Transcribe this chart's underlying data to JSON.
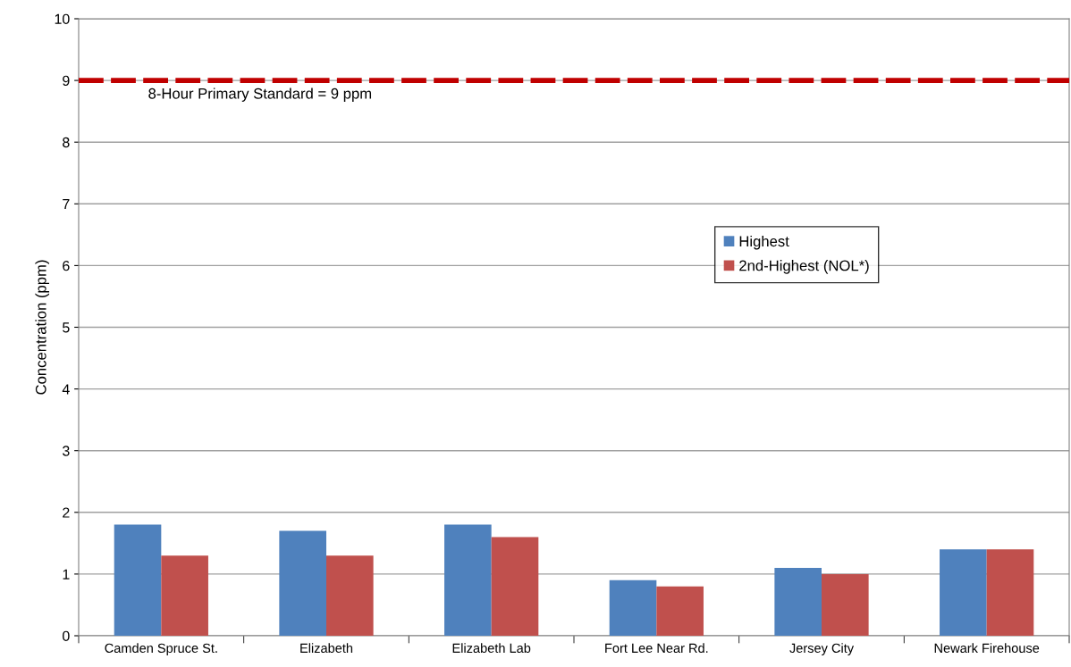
{
  "chart_data": {
    "type": "bar",
    "ylabel": "Concentration (ppm)",
    "categories": [
      "Camden Spruce St.",
      "Elizabeth",
      "Elizabeth Lab",
      "Fort Lee Near Rd.",
      "Jersey City",
      "Newark Firehouse"
    ],
    "series": [
      {
        "name": "Highest",
        "color": "#4f81bd",
        "values": [
          1.8,
          1.7,
          1.8,
          0.9,
          1.1,
          1.4
        ]
      },
      {
        "name": "2nd-Highest (NOL*)",
        "color": "#c0504d",
        "values": [
          1.3,
          1.3,
          1.6,
          0.8,
          1.0,
          1.4
        ]
      }
    ],
    "ylim": [
      0,
      10
    ],
    "yticks": [
      0,
      1,
      2,
      3,
      4,
      5,
      6,
      7,
      8,
      9,
      10
    ],
    "grid": "y",
    "legend": "upper right",
    "ref_lines": [
      {
        "axis": "y",
        "value": 9,
        "label": "8-Hour Primary Standard = 9 ppm",
        "color": "#c00000",
        "line_style": "dashed"
      }
    ]
  }
}
